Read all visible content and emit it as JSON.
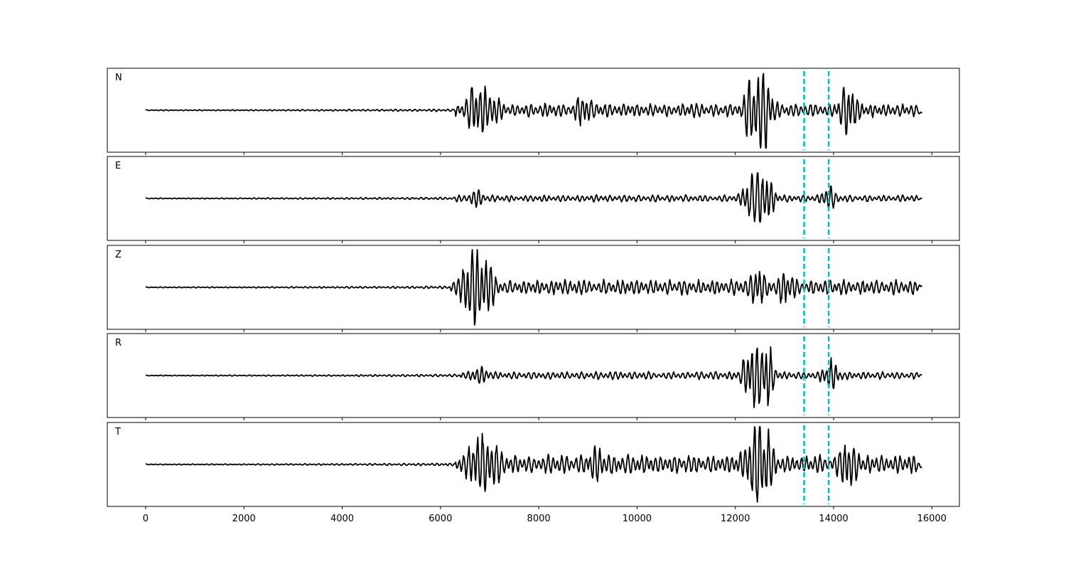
{
  "chart_data": {
    "type": "line",
    "title": "",
    "xlabel": "",
    "ylabel": "",
    "xlim": [
      -780,
      16560
    ],
    "x_ticks": [
      0,
      2000,
      4000,
      6000,
      8000,
      10000,
      12000,
      14000,
      16000
    ],
    "x_tick_labels": [
      "0",
      "2000",
      "4000",
      "6000",
      "8000",
      "10000",
      "12000",
      "14000",
      "16000"
    ],
    "grid": false,
    "trace_color": "#000000",
    "marker_color": "#00bfbf",
    "vertical_markers": [
      13400,
      13900
    ],
    "panels": [
      {
        "name": "N",
        "x_start": 0,
        "x_end": 15800,
        "noise_end": 6300,
        "seed": 11,
        "bursts": [
          {
            "x": 6700,
            "amp": 0.65
          },
          {
            "x": 7000,
            "amp": 0.5
          },
          {
            "x": 8900,
            "amp": 0.28
          },
          {
            "x": 12350,
            "amp": 0.85
          },
          {
            "x": 12600,
            "amp": 0.8
          },
          {
            "x": 14300,
            "amp": 0.6
          }
        ],
        "base_amp": 0.16,
        "end_offset": -0.08
      },
      {
        "name": "E",
        "x_start": 0,
        "x_end": 15800,
        "noise_end": 6300,
        "seed": 23,
        "bursts": [
          {
            "x": 6700,
            "amp": 0.18
          },
          {
            "x": 12300,
            "amp": 0.55
          },
          {
            "x": 12600,
            "amp": 0.85
          },
          {
            "x": 13900,
            "amp": 0.25
          }
        ],
        "base_amp": 0.08,
        "end_offset": 0.0
      },
      {
        "name": "Z",
        "x_start": 0,
        "x_end": 15800,
        "noise_end": 6200,
        "seed": 37,
        "bursts": [
          {
            "x": 6600,
            "amp": 0.95
          },
          {
            "x": 6900,
            "amp": 0.85
          },
          {
            "x": 12450,
            "amp": 0.35
          },
          {
            "x": 13000,
            "amp": 0.28
          }
        ],
        "base_amp": 0.18,
        "end_offset": 0.05
      },
      {
        "name": "R",
        "x_start": 0,
        "x_end": 15800,
        "noise_end": 6400,
        "seed": 53,
        "bursts": [
          {
            "x": 6800,
            "amp": 0.2
          },
          {
            "x": 12300,
            "amp": 0.65
          },
          {
            "x": 12600,
            "amp": 0.95
          },
          {
            "x": 13950,
            "amp": 0.35
          }
        ],
        "base_amp": 0.09,
        "end_offset": 0.02
      },
      {
        "name": "T",
        "x_start": 0,
        "x_end": 15800,
        "noise_end": 6300,
        "seed": 71,
        "bursts": [
          {
            "x": 6750,
            "amp": 0.65
          },
          {
            "x": 7050,
            "amp": 0.45
          },
          {
            "x": 9200,
            "amp": 0.3
          },
          {
            "x": 12350,
            "amp": 0.85
          },
          {
            "x": 12600,
            "amp": 0.9
          },
          {
            "x": 14300,
            "amp": 0.6
          }
        ],
        "base_amp": 0.22,
        "end_offset": -0.08
      }
    ]
  }
}
